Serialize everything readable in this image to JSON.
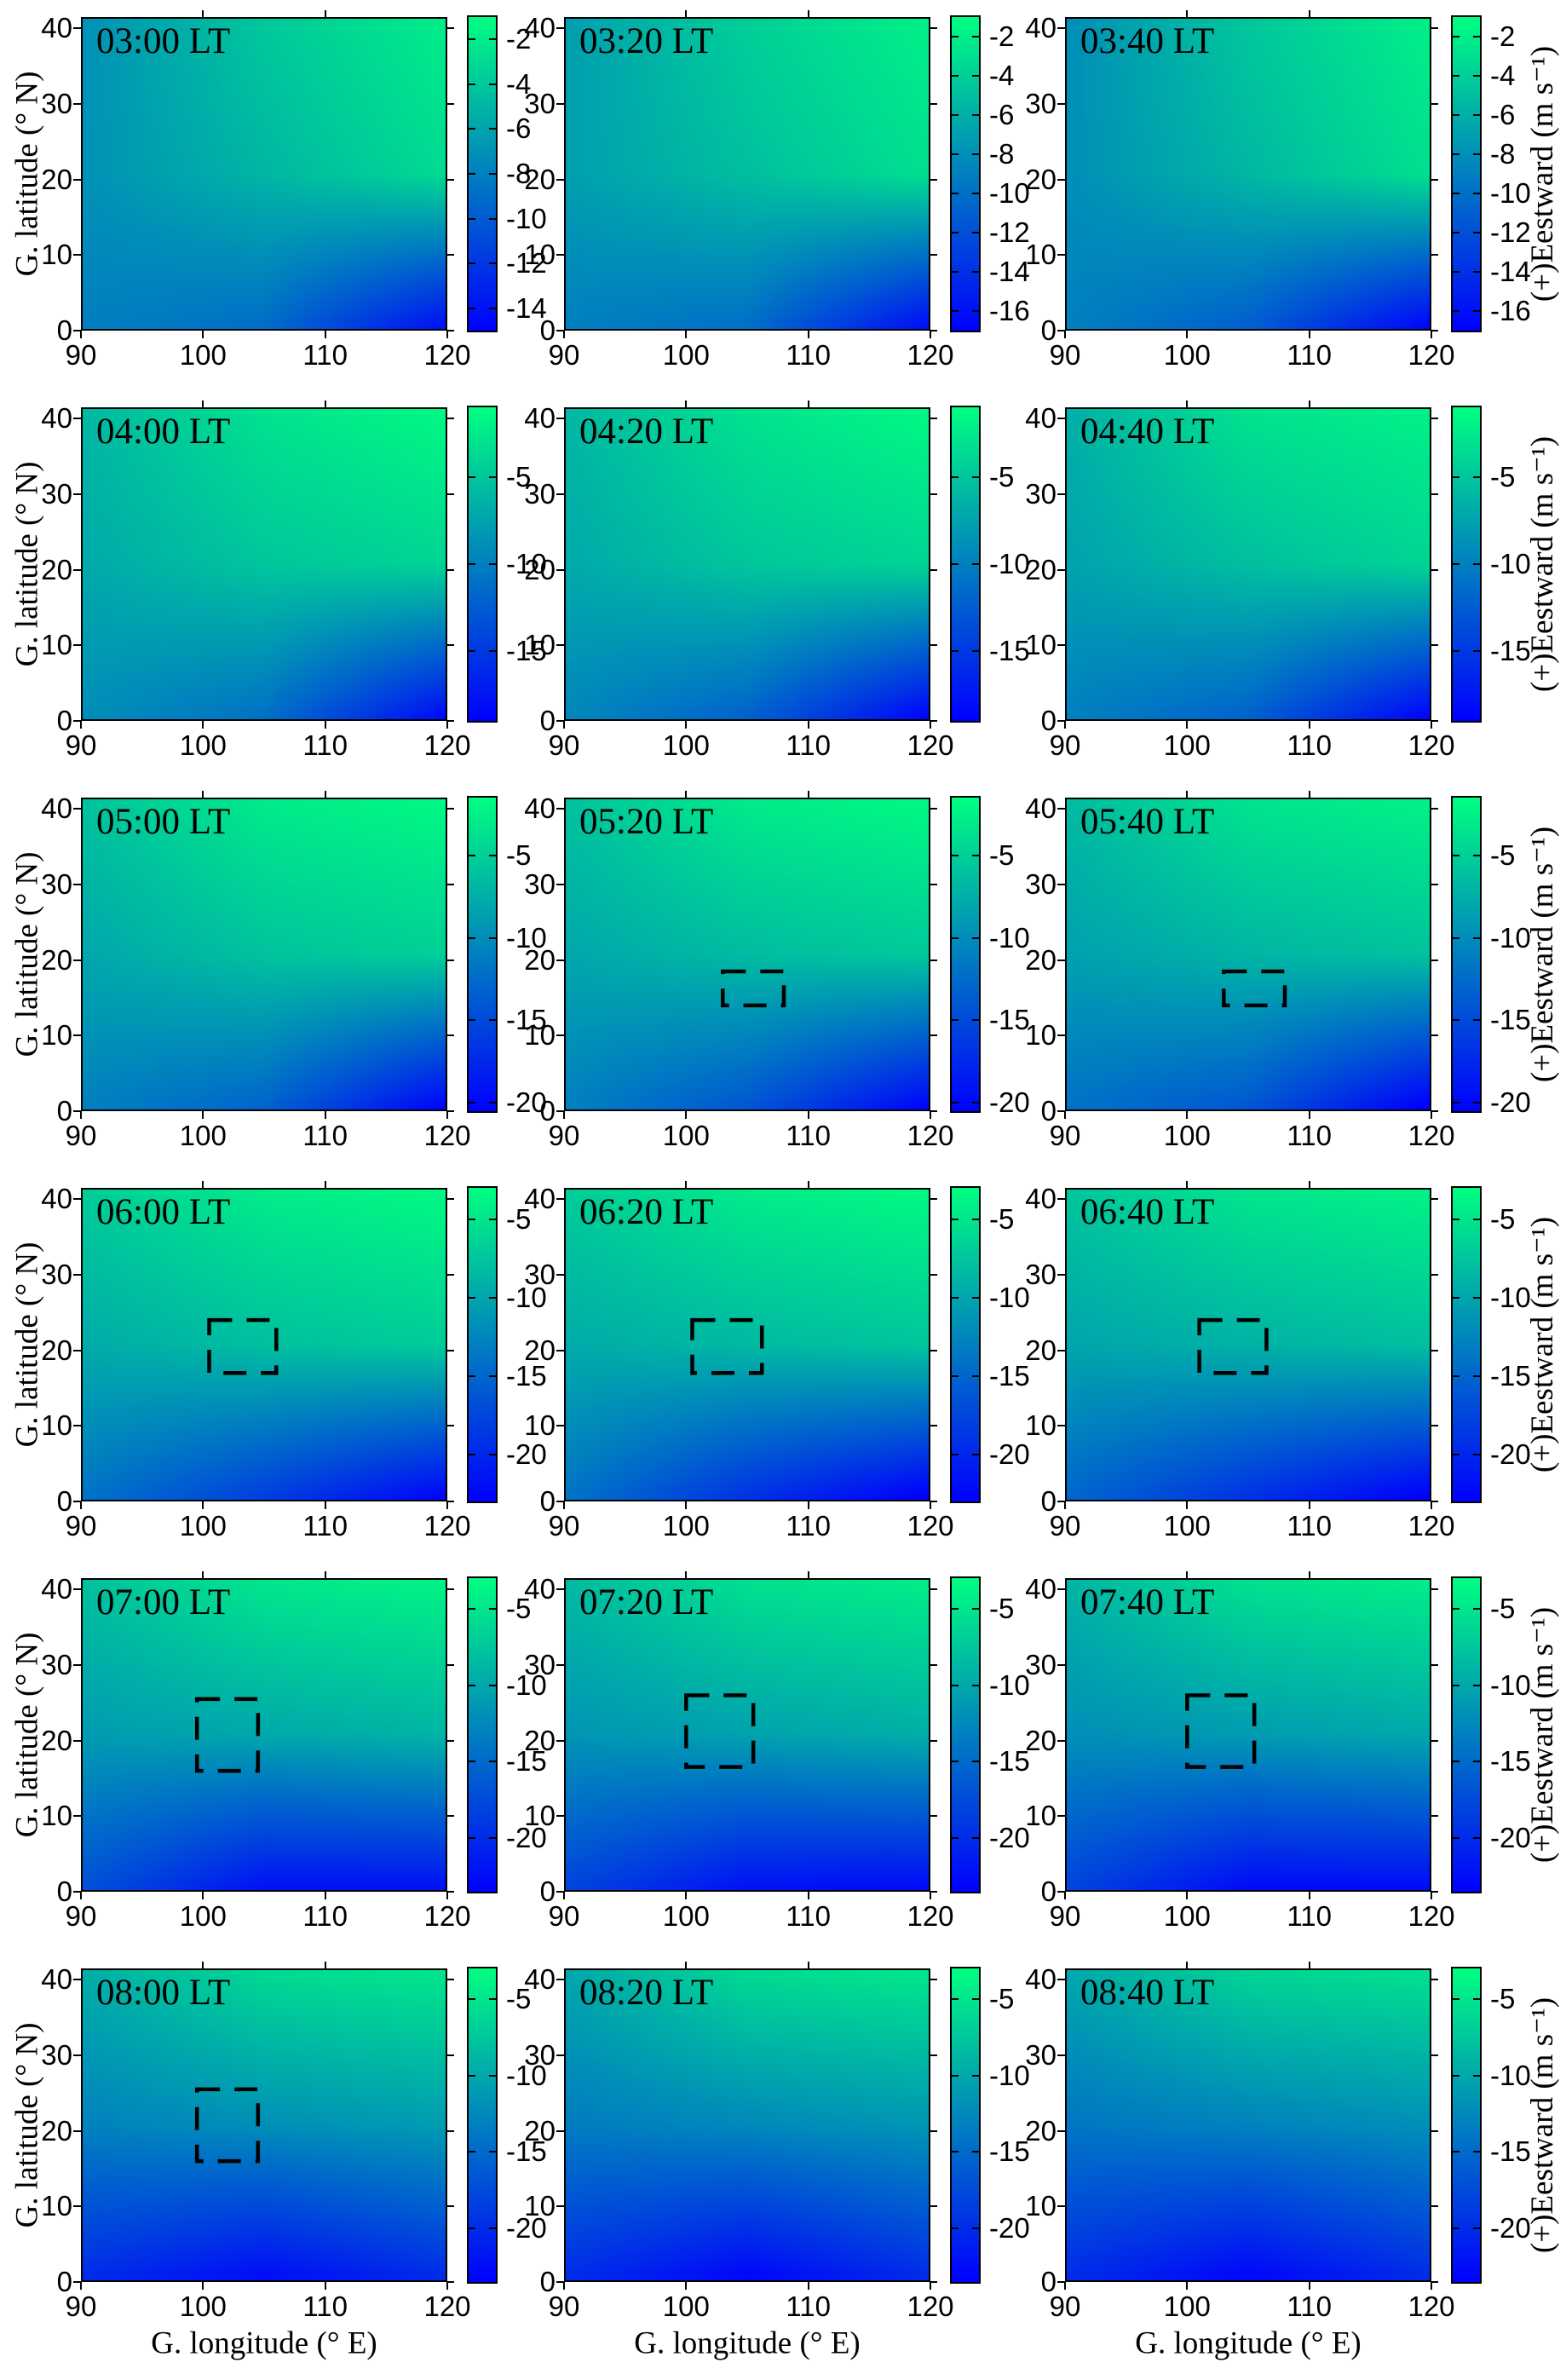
{
  "chart_data": {
    "type": "heatmap",
    "grid_rows": 6,
    "grid_cols": 3,
    "x": {
      "label": "G. longitude (° E)",
      "ticks": [
        90,
        100,
        110,
        120
      ],
      "min": 90,
      "max": 120
    },
    "y": {
      "label": "G. latitude (° N)",
      "ticks": [
        0,
        10,
        20,
        30,
        40
      ],
      "min": 0,
      "max": 41.5
    },
    "colorbar_label": "(+)Eestward (m s⁻¹)",
    "colormap": {
      "name": "winter",
      "high_color": "#00FF80",
      "low_color": "#0000FF"
    },
    "grid_lons": [
      90,
      105,
      120
    ],
    "grid_lats": [
      40,
      20,
      0
    ],
    "panels": [
      {
        "title": "03:00 LT",
        "row": 0,
        "col": 0,
        "cb_min": -15,
        "cb_max": -1,
        "cb_ticks": [
          -2,
          -4,
          -6,
          -8,
          -10,
          -12,
          -14
        ],
        "values": [
          [
            -7,
            -4,
            -2
          ],
          [
            -7,
            -5,
            -3
          ],
          [
            -8,
            -9,
            -14
          ]
        ],
        "box": null
      },
      {
        "title": "03:20 LT",
        "row": 0,
        "col": 1,
        "cb_min": -17,
        "cb_max": -1,
        "cb_ticks": [
          -2,
          -4,
          -6,
          -8,
          -10,
          -12,
          -14,
          -16
        ],
        "values": [
          [
            -7,
            -4,
            -2
          ],
          [
            -7,
            -5,
            -3
          ],
          [
            -9,
            -10,
            -16
          ]
        ],
        "box": null
      },
      {
        "title": "03:40 LT",
        "row": 0,
        "col": 2,
        "cb_min": -17,
        "cb_max": -1,
        "cb_ticks": [
          -2,
          -4,
          -6,
          -8,
          -10,
          -12,
          -14,
          -16
        ],
        "values": [
          [
            -8,
            -4.5,
            -2
          ],
          [
            -8,
            -5.5,
            -3
          ],
          [
            -9,
            -11,
            -16.5
          ]
        ],
        "box": null
      },
      {
        "title": "04:00 LT",
        "row": 1,
        "col": 0,
        "cb_min": -19,
        "cb_max": -1,
        "cb_ticks": [
          -5,
          -10,
          -15
        ],
        "values": [
          [
            -6,
            -3,
            -1.5
          ],
          [
            -7,
            -5,
            -4
          ],
          [
            -9,
            -11,
            -18
          ]
        ],
        "box": null
      },
      {
        "title": "04:20 LT",
        "row": 1,
        "col": 1,
        "cb_min": -19,
        "cb_max": -1,
        "cb_ticks": [
          -5,
          -10,
          -15
        ],
        "values": [
          [
            -6,
            -3,
            -1.5
          ],
          [
            -7,
            -5,
            -4
          ],
          [
            -9.5,
            -12,
            -18.5
          ]
        ],
        "box": null
      },
      {
        "title": "04:40 LT",
        "row": 1,
        "col": 2,
        "cb_min": -19,
        "cb_max": -1,
        "cb_ticks": [
          -5,
          -10,
          -15
        ],
        "values": [
          [
            -6.5,
            -3,
            -2
          ],
          [
            -7.5,
            -5.5,
            -4
          ],
          [
            -10,
            -12,
            -18.5
          ]
        ],
        "box": null
      },
      {
        "title": "05:00 LT",
        "row": 2,
        "col": 0,
        "cb_min": -20.5,
        "cb_max": -1.5,
        "cb_ticks": [
          -5,
          -10,
          -15,
          -20
        ],
        "values": [
          [
            -6,
            -3,
            -2
          ],
          [
            -8,
            -6,
            -5
          ],
          [
            -11,
            -13,
            -20
          ]
        ],
        "box": null
      },
      {
        "title": "05:20 LT",
        "row": 2,
        "col": 1,
        "cb_min": -20.5,
        "cb_max": -1.5,
        "cb_ticks": [
          -5,
          -10,
          -15,
          -20
        ],
        "values": [
          [
            -6,
            -3,
            -2
          ],
          [
            -8,
            -6.5,
            -5.5
          ],
          [
            -11,
            -14,
            -20
          ]
        ],
        "box": {
          "lon": [
            103,
            108
          ],
          "lat": [
            14,
            18.5
          ]
        }
      },
      {
        "title": "05:40 LT",
        "row": 2,
        "col": 2,
        "cb_min": -20.5,
        "cb_max": -1.5,
        "cb_ticks": [
          -5,
          -10,
          -15,
          -20
        ],
        "values": [
          [
            -6.5,
            -3.5,
            -2.5
          ],
          [
            -8.5,
            -7,
            -6
          ],
          [
            -12,
            -14,
            -20.5
          ]
        ],
        "box": {
          "lon": [
            103,
            108
          ],
          "lat": [
            14,
            18.5
          ]
        }
      },
      {
        "title": "06:00 LT",
        "row": 3,
        "col": 0,
        "cb_min": -23,
        "cb_max": -3,
        "cb_ticks": [
          -5,
          -10,
          -15,
          -20
        ],
        "values": [
          [
            -7,
            -4.5,
            -3.5
          ],
          [
            -9.5,
            -8,
            -7
          ],
          [
            -14,
            -18,
            -22.5
          ]
        ],
        "box": {
          "lon": [
            100.5,
            106
          ],
          "lat": [
            17,
            24
          ]
        }
      },
      {
        "title": "06:20 LT",
        "row": 3,
        "col": 1,
        "cb_min": -23,
        "cb_max": -3,
        "cb_ticks": [
          -5,
          -10,
          -15,
          -20
        ],
        "values": [
          [
            -7,
            -4.5,
            -3.5
          ],
          [
            -9.5,
            -8.5,
            -7.5
          ],
          [
            -14,
            -19,
            -23
          ]
        ],
        "box": {
          "lon": [
            100.5,
            106.2
          ],
          "lat": [
            17,
            24
          ]
        }
      },
      {
        "title": "06:40 LT",
        "row": 3,
        "col": 2,
        "cb_min": -23,
        "cb_max": -3,
        "cb_ticks": [
          -5,
          -10,
          -15,
          -20
        ],
        "values": [
          [
            -7.5,
            -5,
            -4
          ],
          [
            -10,
            -9,
            -8
          ],
          [
            -15,
            -19,
            -23
          ]
        ],
        "box": {
          "lon": [
            101,
            106.5
          ],
          "lat": [
            17,
            24
          ]
        }
      },
      {
        "title": "07:00 LT",
        "row": 4,
        "col": 0,
        "cb_min": -23.5,
        "cb_max": -3,
        "cb_ticks": [
          -5,
          -10,
          -15,
          -20
        ],
        "values": [
          [
            -8,
            -5,
            -4
          ],
          [
            -11,
            -10,
            -9
          ],
          [
            -17,
            -22,
            -22
          ]
        ],
        "box": {
          "lon": [
            99.5,
            104.5
          ],
          "lat": [
            16,
            25.5
          ]
        }
      },
      {
        "title": "07:20 LT",
        "row": 4,
        "col": 1,
        "cb_min": -23.5,
        "cb_max": -3,
        "cb_ticks": [
          -5,
          -10,
          -15,
          -20
        ],
        "values": [
          [
            -8.5,
            -5.5,
            -4.5
          ],
          [
            -11.5,
            -10.5,
            -9.5
          ],
          [
            -18,
            -22,
            -22.5
          ]
        ],
        "box": {
          "lon": [
            100,
            105.5
          ],
          "lat": [
            16.5,
            26
          ]
        }
      },
      {
        "title": "07:40 LT",
        "row": 4,
        "col": 2,
        "cb_min": -23.5,
        "cb_max": -3,
        "cb_ticks": [
          -5,
          -10,
          -15,
          -20
        ],
        "values": [
          [
            -9,
            -5.5,
            -4.5
          ],
          [
            -12,
            -11,
            -10
          ],
          [
            -18,
            -22.5,
            -22.5
          ]
        ],
        "box": {
          "lon": [
            100,
            105.5
          ],
          "lat": [
            16.5,
            26
          ]
        }
      },
      {
        "title": "08:00 LT",
        "row": 5,
        "col": 0,
        "cb_min": -23.5,
        "cb_max": -3,
        "cb_ticks": [
          -5,
          -10,
          -15,
          -20
        ],
        "values": [
          [
            -9.5,
            -6,
            -5
          ],
          [
            -13,
            -12,
            -11
          ],
          [
            -20,
            -22.5,
            -20
          ]
        ],
        "box": {
          "lon": [
            99.5,
            104.5
          ],
          "lat": [
            16,
            25.5
          ]
        }
      },
      {
        "title": "08:20 LT",
        "row": 5,
        "col": 1,
        "cb_min": -23.5,
        "cb_max": -3,
        "cb_ticks": [
          -5,
          -10,
          -15,
          -20
        ],
        "values": [
          [
            -10,
            -6,
            -5
          ],
          [
            -13.5,
            -12.5,
            -11.5
          ],
          [
            -20,
            -23,
            -20
          ]
        ],
        "box": null
      },
      {
        "title": "08:40 LT",
        "row": 5,
        "col": 2,
        "cb_min": -23.5,
        "cb_max": -3,
        "cb_ticks": [
          -5,
          -10,
          -15,
          -20
        ],
        "values": [
          [
            -10,
            -6.5,
            -5.5
          ],
          [
            -14,
            -13,
            -12
          ],
          [
            -20,
            -23,
            -20
          ]
        ],
        "box": null
      }
    ]
  }
}
